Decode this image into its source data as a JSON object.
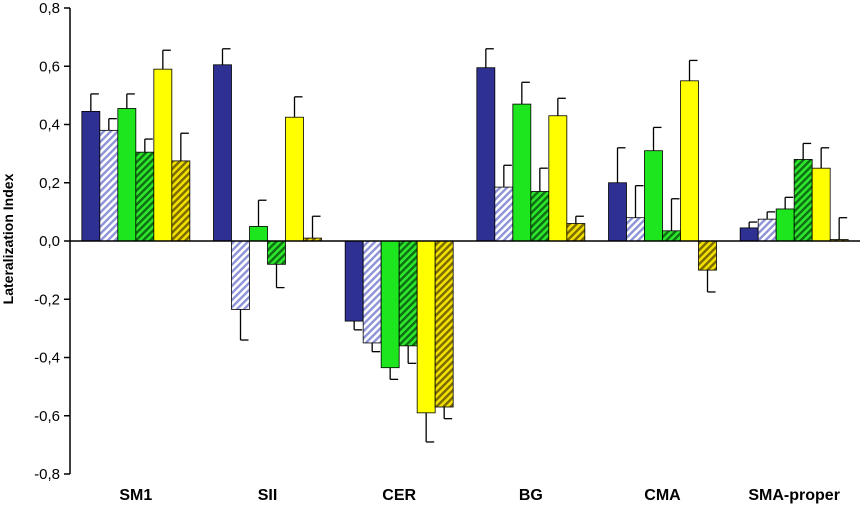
{
  "chart_data": {
    "type": "bar",
    "title": "",
    "xlabel": "",
    "ylabel": "Lateralization Index",
    "ylim": [
      -0.8,
      0.8
    ],
    "ytick_step": 0.2,
    "y_tick_labels": [
      "0,8",
      "0,6",
      "0,4",
      "0,2",
      "0,0",
      "-0,2",
      "-0,4",
      "-0,6",
      "-0,8"
    ],
    "grid": false,
    "legend": "none",
    "categories": [
      "SM1",
      "SII",
      "CER",
      "BG",
      "CMA",
      "SMA-proper"
    ],
    "series": [
      {
        "color": "#2e3192",
        "pattern": "solid",
        "values": [
          0.445,
          0.605,
          -0.275,
          0.595,
          0.2,
          0.045
        ],
        "errors": [
          0.06,
          0.055,
          0.03,
          0.065,
          0.12,
          0.02
        ]
      },
      {
        "color": "#b8bde6",
        "pattern": "hatched",
        "values": [
          0.38,
          -0.235,
          -0.35,
          0.185,
          0.08,
          0.075
        ],
        "errors": [
          0.04,
          0.105,
          0.03,
          0.075,
          0.11,
          0.025
        ]
      },
      {
        "color": "#1ee61e",
        "pattern": "solid",
        "values": [
          0.455,
          0.05,
          -0.435,
          0.47,
          0.31,
          0.11
        ],
        "errors": [
          0.05,
          0.09,
          0.04,
          0.075,
          0.08,
          0.04
        ]
      },
      {
        "color": "#2eb82e",
        "pattern": "hatched",
        "values": [
          0.305,
          -0.08,
          -0.36,
          0.17,
          0.035,
          0.28
        ],
        "errors": [
          0.045,
          0.08,
          0.06,
          0.08,
          0.11,
          0.055
        ]
      },
      {
        "color": "#ffff00",
        "pattern": "solid",
        "values": [
          0.59,
          0.425,
          -0.59,
          0.43,
          0.55,
          0.25
        ],
        "errors": [
          0.065,
          0.07,
          0.1,
          0.06,
          0.07,
          0.07
        ]
      },
      {
        "color": "#e6d21e",
        "pattern": "hatched",
        "values": [
          0.275,
          0.01,
          -0.57,
          0.06,
          -0.1,
          0.005
        ],
        "errors": [
          0.095,
          0.075,
          0.04,
          0.025,
          0.075,
          0.075
        ]
      }
    ]
  }
}
